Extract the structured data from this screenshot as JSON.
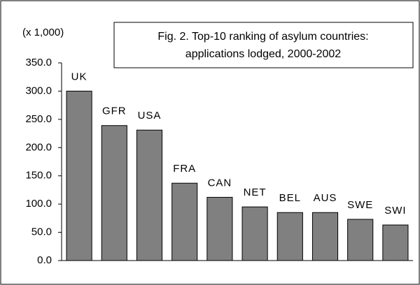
{
  "chart_data": {
    "type": "bar",
    "title": [
      "Fig. 2. Top-10 ranking of asylum countries:",
      "applications lodged, 2000-2002"
    ],
    "y_axis_label": "(x 1,000)",
    "categories": [
      "UK",
      "GFR",
      "USA",
      "FRA",
      "CAN",
      "NET",
      "BEL",
      "AUS",
      "SWE",
      "SWI"
    ],
    "values": [
      300,
      239,
      231,
      137,
      112,
      95,
      85,
      85,
      73,
      63
    ],
    "color": "#808080",
    "ylim": [
      0,
      350
    ],
    "yticks": [
      {
        "value": 0,
        "label": "0.0"
      },
      {
        "value": 50,
        "label": "50.0"
      },
      {
        "value": 100,
        "label": "100.0"
      },
      {
        "value": 150,
        "label": "150.0"
      },
      {
        "value": 200,
        "label": "200.0"
      },
      {
        "value": 250,
        "label": "250.0"
      },
      {
        "value": 300,
        "label": "300.0"
      },
      {
        "value": 350,
        "label": "350.0"
      }
    ],
    "grid": false
  }
}
